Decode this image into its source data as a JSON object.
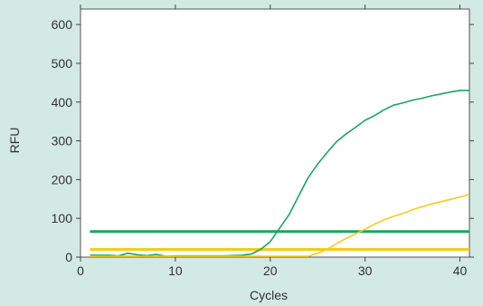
{
  "chart_data": {
    "type": "line",
    "title": "",
    "xlabel": "Cycles",
    "ylabel": "RFU",
    "xlim": [
      0,
      41
    ],
    "ylim": [
      0,
      640
    ],
    "xticks": [
      0,
      10,
      20,
      30,
      40
    ],
    "yticks": [
      0,
      100,
      200,
      300,
      400,
      500,
      600
    ],
    "grid": false,
    "legend": "none",
    "series": [
      {
        "color": "#1aa563",
        "x": [
          1,
          2,
          3,
          4,
          5,
          6,
          7,
          8,
          9,
          10,
          11,
          12,
          13,
          14,
          15,
          16,
          17,
          18,
          19,
          20,
          21,
          22,
          23,
          24,
          25,
          26,
          27,
          28,
          29,
          30,
          31,
          32,
          33,
          34,
          35,
          36,
          37,
          38,
          39,
          40,
          41
        ],
        "values": [
          5,
          5,
          5,
          3,
          10,
          6,
          4,
          7,
          2,
          3,
          3,
          3,
          3,
          3,
          3,
          4,
          5,
          8,
          20,
          40,
          75,
          110,
          158,
          205,
          240,
          270,
          298,
          318,
          335,
          353,
          365,
          380,
          392,
          398,
          405,
          410,
          416,
          421,
          426,
          430,
          430
        ]
      },
      {
        "color": "#f2cc1d",
        "x": [
          1,
          2,
          3,
          4,
          5,
          6,
          7,
          8,
          9,
          10,
          11,
          12,
          13,
          14,
          15,
          16,
          17,
          18,
          19,
          20,
          21,
          22,
          23,
          24,
          25,
          26,
          27,
          28,
          29,
          30,
          31,
          32,
          33,
          34,
          35,
          36,
          37,
          38,
          39,
          40,
          41
        ],
        "values": [
          2,
          2,
          2,
          2,
          2,
          2,
          2,
          2,
          2,
          2,
          2,
          2,
          2,
          2,
          2,
          2,
          2,
          2,
          2,
          2,
          2,
          2,
          2,
          2,
          10,
          20,
          35,
          48,
          60,
          72,
          85,
          96,
          105,
          113,
          122,
          130,
          137,
          143,
          149,
          155,
          162
        ]
      }
    ],
    "thresholds": [
      {
        "color": "#1aa563",
        "value": 66,
        "x": [
          1,
          41
        ]
      },
      {
        "color": "#f2cc1d",
        "value": 20,
        "x": [
          1,
          41
        ]
      }
    ]
  }
}
